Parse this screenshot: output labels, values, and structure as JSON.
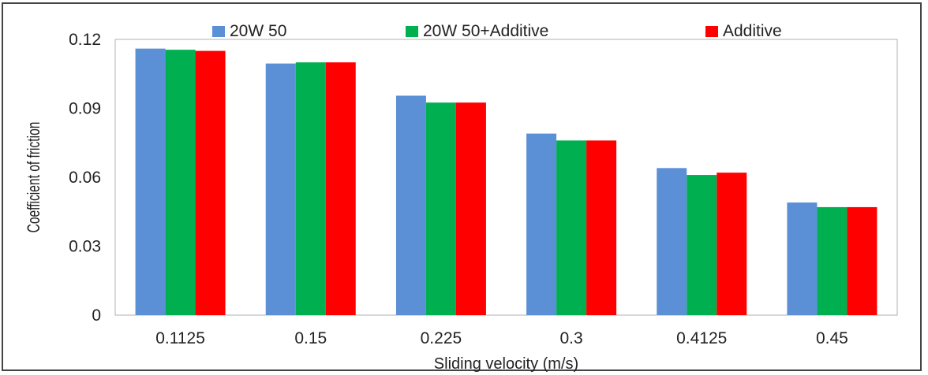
{
  "chart_data": {
    "type": "bar",
    "xlabel": "Sliding velocity (m/s)",
    "ylabel": "Coefficient of friction",
    "categories": [
      "0.1125",
      "0.15",
      "0.225",
      "0.3",
      "0.4125",
      "0.45"
    ],
    "series": [
      {
        "name": "20W 50",
        "color": "#5b8fd6",
        "values": [
          0.116,
          0.1095,
          0.0955,
          0.079,
          0.064,
          0.049
        ]
      },
      {
        "name": "20W 50+Additive",
        "color": "#00b050",
        "values": [
          0.1155,
          0.11,
          0.0925,
          0.076,
          0.061,
          0.047
        ]
      },
      {
        "name": "Additive",
        "color": "#ff0000",
        "values": [
          0.115,
          0.11,
          0.0925,
          0.076,
          0.062,
          0.047
        ]
      }
    ],
    "ylim": [
      0,
      0.12
    ],
    "yticks": [
      "0",
      "0.03",
      "0.06",
      "0.09",
      "0.12"
    ],
    "ytick_values": [
      0,
      0.03,
      0.06,
      0.09,
      0.12
    ],
    "grid": false,
    "legend_position": "top"
  }
}
